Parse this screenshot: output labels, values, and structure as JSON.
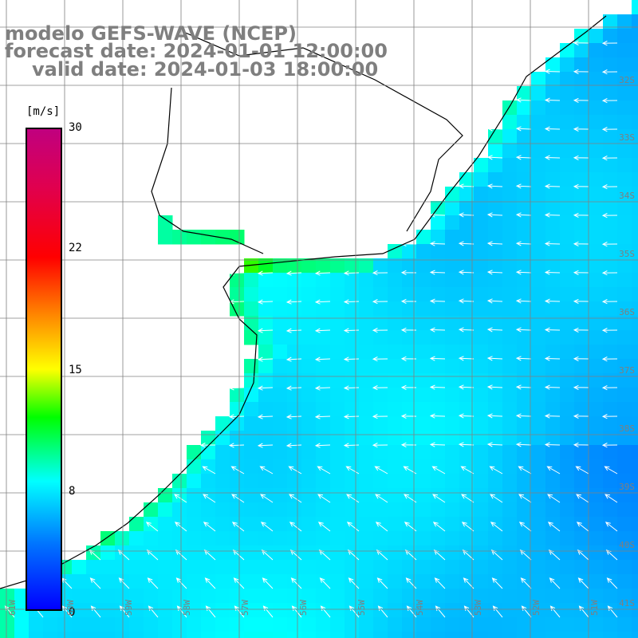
{
  "title": {
    "line1": "modelo GEFS-WAVE (NCEP)",
    "line2": "forecast date: 2024-01-01 12:00:00",
    "line3": "valid date: 2024-01-03 18:00:00"
  },
  "colorbar": {
    "unit": "[m/s]",
    "ticks": [
      "30",
      "22",
      "15",
      "8",
      "0"
    ],
    "min": 0,
    "max": 30,
    "colors": [
      "#0000ff",
      "#0078ff",
      "#00ffff",
      "#00ff00",
      "#ffff00",
      "#ff7f00",
      "#ff0000",
      "#c0007f"
    ]
  },
  "lat_labels": [
    "32S",
    "33S",
    "34S",
    "35S",
    "36S",
    "37S",
    "38S",
    "39S",
    "40S",
    "41S"
  ],
  "lon_labels": [
    "61W",
    "60W",
    "59W",
    "58W",
    "57W",
    "56W",
    "55W",
    "54W",
    "53W",
    "52W",
    "51W"
  ],
  "map": {
    "land_color": "#ffffff",
    "grid_color": "#808080",
    "coast_color": "#000000",
    "arrow_color": "#ffffff",
    "field": "wind speed"
  }
}
